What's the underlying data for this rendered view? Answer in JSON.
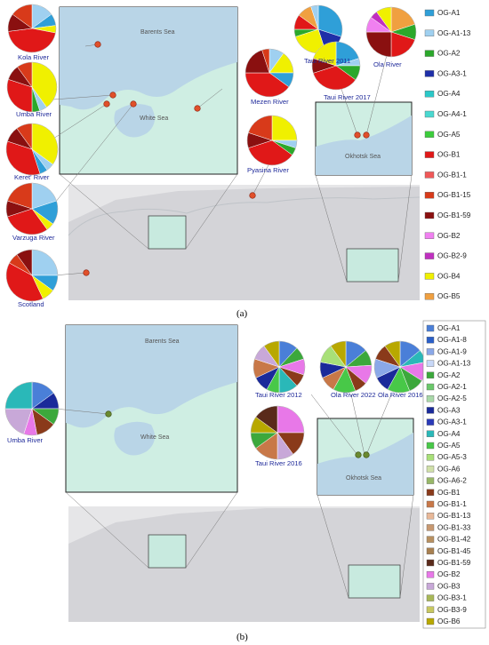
{
  "panel_a": {
    "label": "(a)",
    "seas": [
      "Barents Sea",
      "White Sea",
      "Okhotsk Sea"
    ],
    "places": [
      {
        "name": "Kola River"
      },
      {
        "name": "Umba River"
      },
      {
        "name": "Keret' River"
      },
      {
        "name": "Varzuga River"
      },
      {
        "name": "Scotland"
      },
      {
        "name": "Mezen River"
      },
      {
        "name": "Pyasina River"
      },
      {
        "name": "Taui River 2011"
      },
      {
        "name": "Taui River 2017"
      },
      {
        "name": "Ola River"
      }
    ],
    "legend": [
      "OG-A1",
      "OG-A1-13",
      "OG-A2",
      "OG-A3-1",
      "OG-A4",
      "OG-A4-1",
      "OG-A5",
      "OG-B1",
      "OG-B1-1",
      "OG-B1-15",
      "OG-B1-59",
      "OG-B2",
      "OG-B2-9",
      "OG-B4",
      "OG-B5"
    ],
    "legend_colors": [
      "#2f9fd8",
      "#9fd0f0",
      "#2ba82b",
      "#1f2fa8",
      "#2bc8c8",
      "#4ad8d0",
      "#3ccc3c",
      "#e01818",
      "#f05858",
      "#d83a1a",
      "#8a1010",
      "#f080f0",
      "#c030c0",
      "#f0f000",
      "#f0a040"
    ]
  },
  "panel_b": {
    "label": "(b)",
    "seas": [
      "Barents Sea",
      "White Sea",
      "Okhotsk Sea"
    ],
    "places": [
      {
        "name": "Umba River"
      },
      {
        "name": "Taui River 2012"
      },
      {
        "name": "Ola River 2022"
      },
      {
        "name": "Ola River 2016"
      },
      {
        "name": "Taui River 2016"
      }
    ],
    "legend": [
      "OG-A1",
      "OG-A1-8",
      "OG-A1-9",
      "OG-A1-13",
      "OG-A2",
      "OG-A2-1",
      "OG-A2-5",
      "OG-A3",
      "OG-A3-1",
      "OG-A4",
      "OG-A5",
      "OG-A5-3",
      "OG-A6",
      "OG-A6-2",
      "OG-B1",
      "OG-B1-1",
      "OG-B1-13",
      "OG-B1-33",
      "OG-B1-42",
      "OG-B1-45",
      "OG-B1-59",
      "OG-B2",
      "OG-B3",
      "OG-B3-1",
      "OG-B3-9",
      "OG-B6"
    ],
    "legend_colors": [
      "#4a7fd8",
      "#2a5fc8",
      "#8aa8e8",
      "#c8d8f8",
      "#3ca83c",
      "#6ac86a",
      "#a8d8a8",
      "#1a2a9a",
      "#2a3ab8",
      "#2ab8b8",
      "#48c848",
      "#a8e078",
      "#d0e0a8",
      "#98b868",
      "#8a3a1a",
      "#c87848",
      "#e8b898",
      "#c89870",
      "#b89060",
      "#a88050",
      "#5a2a1a",
      "#e878e8",
      "#c8a8d8",
      "#a8b858",
      "#c8c860",
      "#b8a800"
    ]
  },
  "pie_palette": [
    "#2f9fd8",
    "#9fd0f0",
    "#2ba82b",
    "#e01818",
    "#8a1010",
    "#f0f000",
    "#f080f0",
    "#d83a1a",
    "#f0a040",
    "#1f2fa8"
  ]
}
